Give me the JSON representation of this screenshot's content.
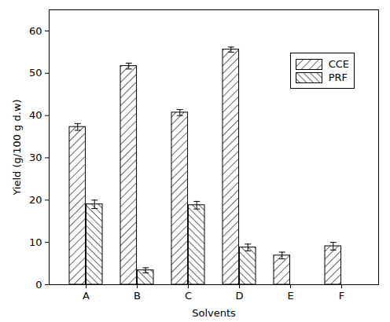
{
  "chart_data": {
    "type": "bar",
    "categories": [
      "A",
      "B",
      "C",
      "D",
      "E",
      "F"
    ],
    "x_label": "Solvents",
    "y_label": "Yield (g/100 g d.w)",
    "series": [
      {
        "name": "CCE",
        "color": "#000000",
        "values": [
          37.3,
          51.7,
          40.7,
          55.6,
          6.9,
          9.1
        ],
        "errors": [
          0.8,
          0.7,
          0.7,
          0.6,
          0.8,
          0.9
        ]
      },
      {
        "name": "PRF",
        "color": "#000000",
        "values": [
          19.0,
          3.4,
          18.8,
          8.8,
          null,
          null
        ],
        "errors": [
          1.0,
          0.6,
          0.9,
          0.8,
          null,
          null
        ]
      }
    ],
    "ylim": [
      0,
      65
    ],
    "yticks": [
      0,
      10,
      20,
      30,
      40,
      50,
      60
    ],
    "legend": "top-right",
    "grid": false
  }
}
